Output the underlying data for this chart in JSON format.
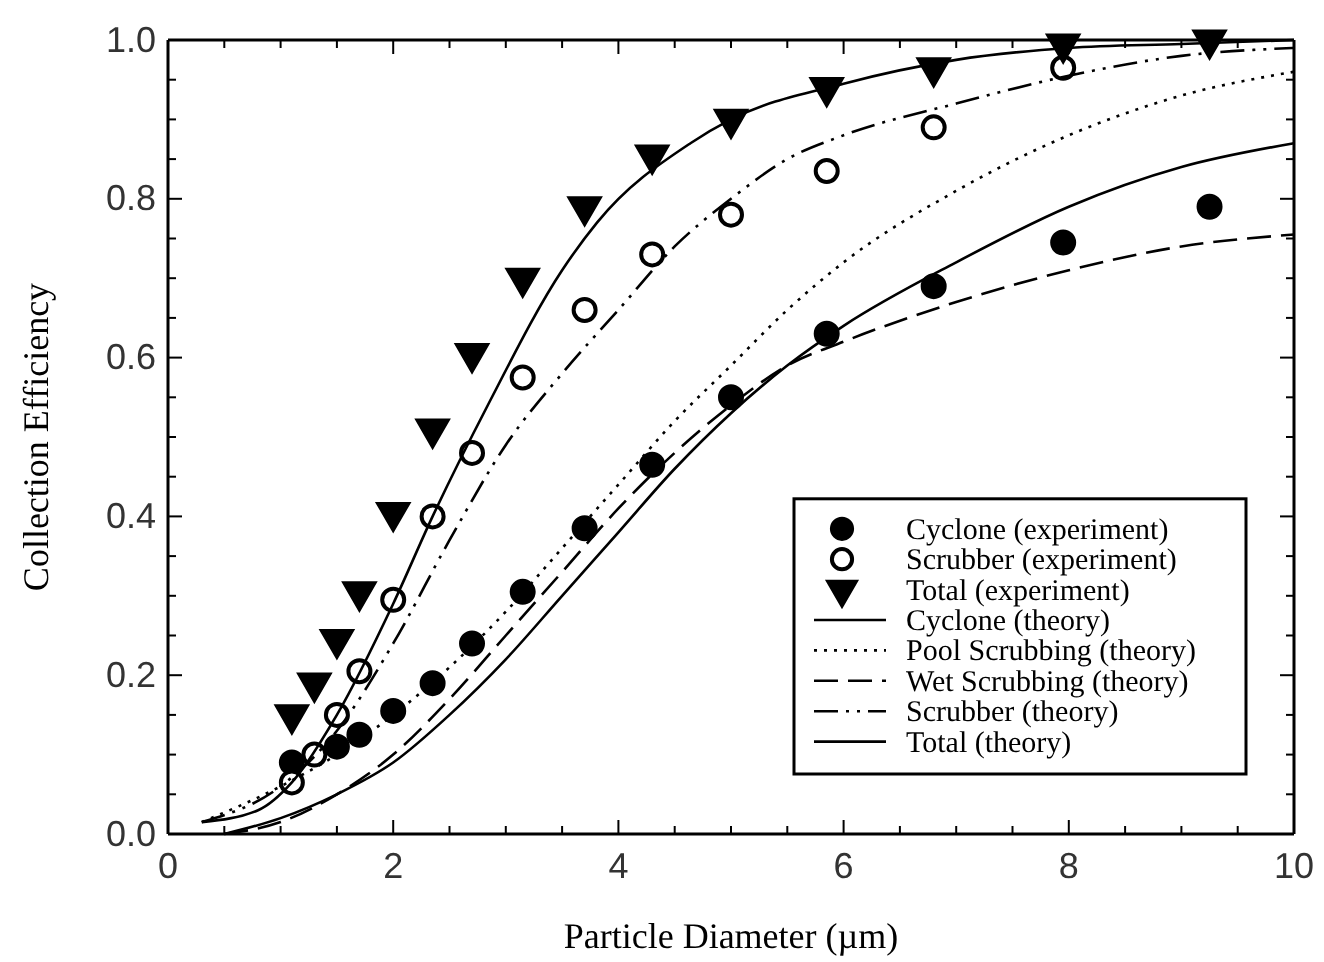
{
  "chart_data": {
    "type": "line",
    "xlabel": "Particle Diameter (µm)",
    "ylabel": "Collection Efficiency",
    "xlim": [
      0,
      10
    ],
    "ylim": [
      0,
      1
    ],
    "xticks": [
      {
        "value": 0,
        "label": "0"
      },
      {
        "value": 0.5,
        "label": null
      },
      {
        "value": 1,
        "label": null
      },
      {
        "value": 1.5,
        "label": null
      },
      {
        "value": 2,
        "label": "2"
      },
      {
        "value": 2.5,
        "label": null
      },
      {
        "value": 3,
        "label": null
      },
      {
        "value": 3.5,
        "label": null
      },
      {
        "value": 4,
        "label": "4"
      },
      {
        "value": 4.5,
        "label": null
      },
      {
        "value": 5,
        "label": null
      },
      {
        "value": 5.5,
        "label": null
      },
      {
        "value": 6,
        "label": "6"
      },
      {
        "value": 6.5,
        "label": null
      },
      {
        "value": 7,
        "label": null
      },
      {
        "value": 7.5,
        "label": null
      },
      {
        "value": 8,
        "label": "8"
      },
      {
        "value": 8.5,
        "label": null
      },
      {
        "value": 9,
        "label": null
      },
      {
        "value": 9.5,
        "label": null
      },
      {
        "value": 10,
        "label": "10"
      }
    ],
    "yticks": [
      {
        "value": 0,
        "label": "0.0"
      },
      {
        "value": 0.05,
        "label": null
      },
      {
        "value": 0.1,
        "label": null
      },
      {
        "value": 0.15,
        "label": null
      },
      {
        "value": 0.2,
        "label": "0.2"
      },
      {
        "value": 0.25,
        "label": null
      },
      {
        "value": 0.3,
        "label": null
      },
      {
        "value": 0.35,
        "label": null
      },
      {
        "value": 0.4,
        "label": "0.4"
      },
      {
        "value": 0.45,
        "label": null
      },
      {
        "value": 0.5,
        "label": null
      },
      {
        "value": 0.55,
        "label": null
      },
      {
        "value": 0.6,
        "label": "0.6"
      },
      {
        "value": 0.65,
        "label": null
      },
      {
        "value": 0.7,
        "label": null
      },
      {
        "value": 0.75,
        "label": null
      },
      {
        "value": 0.8,
        "label": "0.8"
      },
      {
        "value": 0.85,
        "label": null
      },
      {
        "value": 0.9,
        "label": null
      },
      {
        "value": 0.95,
        "label": null
      },
      {
        "value": 1,
        "label": "1.0"
      }
    ],
    "legend": "bottom right",
    "grid": false,
    "series": [
      {
        "name": "Cyclone (experiment)",
        "type": "scatter",
        "marker": "circle",
        "color": "#000000",
        "x": [
          1.1,
          1.5,
          1.7,
          2.0,
          2.35,
          2.7,
          3.15,
          3.7,
          4.3,
          5.0,
          5.85,
          6.8,
          7.95,
          9.25
        ],
        "values": [
          0.09,
          0.11,
          0.125,
          0.155,
          0.19,
          0.24,
          0.305,
          0.385,
          0.465,
          0.55,
          0.63,
          0.69,
          0.745,
          0.79
        ]
      },
      {
        "name": "Scrubber (experiment)",
        "type": "scatter",
        "marker": "circle-open",
        "color": "#000000",
        "x": [
          1.1,
          1.3,
          1.5,
          1.7,
          2.0,
          2.35,
          2.7,
          3.15,
          3.7,
          4.3,
          5.0,
          5.85,
          6.8,
          7.95
        ],
        "values": [
          0.065,
          0.1,
          0.15,
          0.205,
          0.295,
          0.4,
          0.48,
          0.575,
          0.66,
          0.73,
          0.78,
          0.835,
          0.89,
          0.965
        ]
      },
      {
        "name": "Total (experiment)",
        "type": "scatter",
        "marker": "triangle-down",
        "color": "#000000",
        "x": [
          1.1,
          1.3,
          1.5,
          1.7,
          2.0,
          2.35,
          2.7,
          3.15,
          3.7,
          4.3,
          5.0,
          5.85,
          6.8,
          7.95,
          9.25
        ],
        "values": [
          0.15,
          0.19,
          0.245,
          0.305,
          0.405,
          0.51,
          0.605,
          0.7,
          0.79,
          0.855,
          0.9,
          0.94,
          0.965,
          0.995,
          1.0
        ]
      },
      {
        "name": "Cyclone (theory)",
        "line_style": "solid",
        "color": "#000000",
        "x": [
          0.5,
          1,
          1.5,
          2,
          2.5,
          3,
          3.5,
          4,
          4.5,
          5,
          5.5,
          6,
          7,
          8,
          9,
          10
        ],
        "values": [
          0,
          0.02,
          0.05,
          0.09,
          0.15,
          0.22,
          0.3,
          0.38,
          0.46,
          0.53,
          0.59,
          0.64,
          0.72,
          0.79,
          0.84,
          0.87
        ]
      },
      {
        "name": "Pool Scrubbing (theory)",
        "line_style": "dotted",
        "color": "#000000",
        "x": [
          0.3,
          1,
          1.5,
          2,
          2.5,
          3,
          3.5,
          4,
          4.5,
          5,
          5.5,
          6,
          7,
          8,
          9,
          10
        ],
        "values": [
          0.015,
          0.06,
          0.1,
          0.15,
          0.21,
          0.28,
          0.36,
          0.44,
          0.52,
          0.59,
          0.66,
          0.72,
          0.81,
          0.88,
          0.93,
          0.96
        ]
      },
      {
        "name": "Wet Scrubbing (theory)",
        "line_style": "dashed",
        "color": "#000000",
        "x": [
          0.5,
          1,
          1.5,
          2,
          2.5,
          3,
          3.5,
          4,
          4.5,
          5,
          5.5,
          6,
          7,
          8,
          9,
          10
        ],
        "values": [
          0,
          0.015,
          0.05,
          0.1,
          0.17,
          0.25,
          0.33,
          0.41,
          0.48,
          0.54,
          0.59,
          0.62,
          0.67,
          0.71,
          0.74,
          0.755
        ]
      },
      {
        "name": "Scrubber (theory)",
        "line_style": "dashdot",
        "color": "#000000",
        "x": [
          0.3,
          1,
          1.5,
          2,
          2.5,
          3,
          3.5,
          4,
          4.5,
          5,
          5.5,
          6,
          7,
          8,
          9,
          10
        ],
        "values": [
          0.015,
          0.06,
          0.13,
          0.24,
          0.37,
          0.49,
          0.58,
          0.66,
          0.74,
          0.8,
          0.85,
          0.88,
          0.92,
          0.955,
          0.98,
          0.99
        ]
      },
      {
        "name": "Total (theory)",
        "line_style": "solid",
        "color": "#000000",
        "x": [
          0.3,
          0.8,
          1.1,
          1.5,
          2,
          2.35,
          2.84,
          3.5,
          3.81,
          4.64,
          5,
          6,
          7,
          8,
          9,
          10
        ],
        "values": [
          0.015,
          0.03,
          0.065,
          0.15,
          0.29,
          0.4,
          0.54,
          0.71,
          0.77,
          0.87,
          0.9,
          0.945,
          0.975,
          0.99,
          0.995,
          1.0
        ]
      }
    ]
  }
}
